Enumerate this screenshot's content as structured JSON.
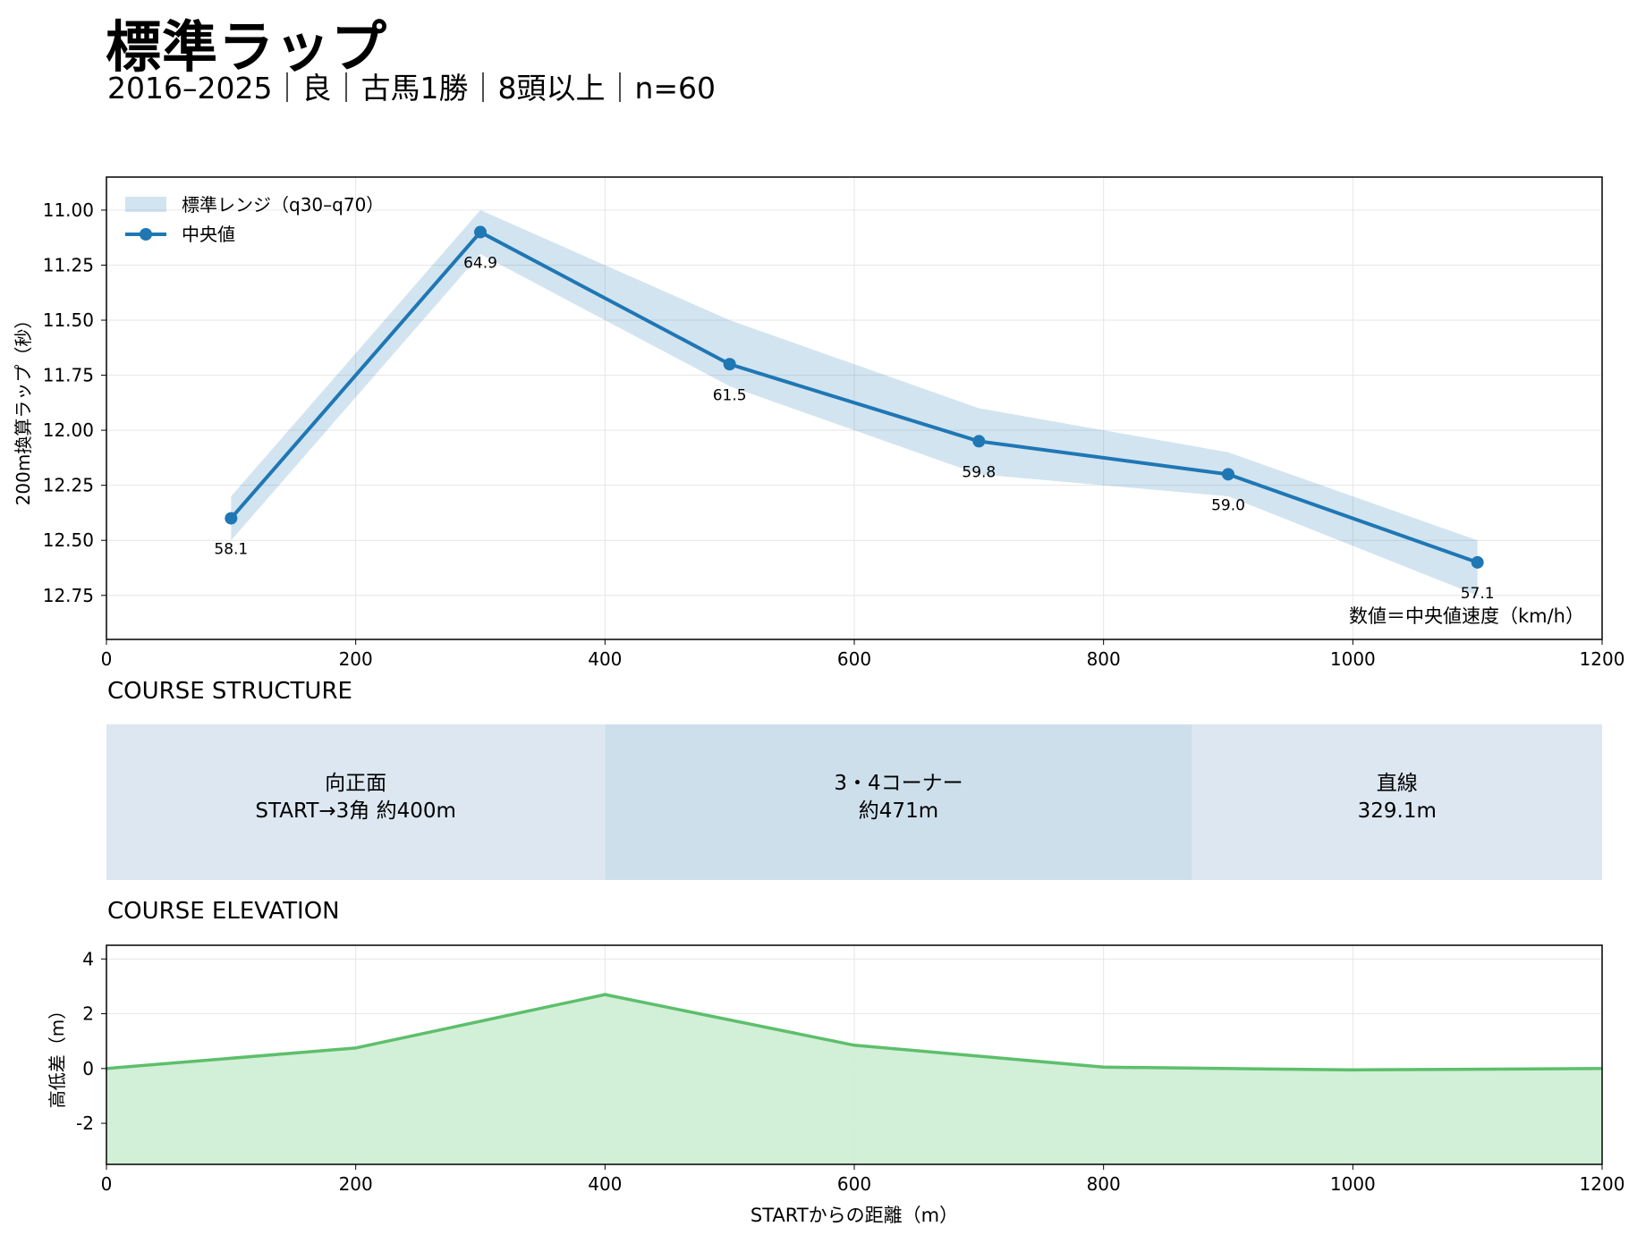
{
  "header": {
    "title": "標準ラップ",
    "subtitle": "2016–2025｜良｜古馬1勝｜8頭以上｜n=60"
  },
  "chart_data": [
    {
      "type": "line",
      "ylabel": "200m換算ラップ（秒）",
      "xlim": [
        0,
        1200
      ],
      "ylim": [
        12.95,
        10.85
      ],
      "y_inverted": true,
      "xticks": [
        "0",
        "200",
        "400",
        "600",
        "800",
        "1000",
        "1200"
      ],
      "yticks": [
        "11.00",
        "11.25",
        "11.50",
        "11.75",
        "12.00",
        "12.25",
        "12.50",
        "12.75"
      ],
      "grid": true,
      "legend": {
        "position": "top-left",
        "entries": [
          "標準レンジ（q30–q70）",
          "中央値"
        ]
      },
      "note": "数値＝中央値速度（km/h）",
      "x": [
        100,
        300,
        500,
        700,
        900,
        1100
      ],
      "series": [
        {
          "name": "中央値",
          "values": [
            12.4,
            11.1,
            11.7,
            12.05,
            12.2,
            12.6
          ],
          "color": "#1f77b4"
        },
        {
          "name": "標準レンジ（q30–q70）",
          "lower": [
            12.3,
            11.0,
            11.5,
            11.9,
            12.1,
            12.5
          ],
          "upper": [
            12.5,
            11.2,
            11.8,
            12.2,
            12.3,
            12.75
          ],
          "color": "#1f77b4"
        }
      ],
      "point_labels": [
        "58.1",
        "64.9",
        "61.5",
        "59.8",
        "59.0",
        "57.1"
      ]
    },
    {
      "type": "area",
      "title": "COURSE ELEVATION",
      "xlabel": "STARTからの距離（m）",
      "ylabel": "高低差（m）",
      "xlim": [
        0,
        1200
      ],
      "ylim": [
        -3.5,
        4.5
      ],
      "xticks": [
        "0",
        "200",
        "400",
        "600",
        "800",
        "1000",
        "1200"
      ],
      "yticks": [
        "4",
        "2",
        "0",
        "-2"
      ],
      "grid": true,
      "x": [
        0,
        200,
        400,
        600,
        800,
        1000,
        1200
      ],
      "values": [
        0,
        0.75,
        2.7,
        0.85,
        0.05,
        -0.05,
        0
      ],
      "color": "#5dbf6b",
      "fill_color": "#d0eed6"
    }
  ],
  "course_structure": {
    "title": "COURSE STRUCTURE",
    "xlim": [
      0,
      1200
    ],
    "segments": [
      {
        "start": 0,
        "end": 400,
        "label": "向正面",
        "detail": "START→3角 約400m",
        "color": "#dce7f1"
      },
      {
        "start": 400,
        "end": 871,
        "label": "3・4コーナー",
        "detail": "約471m",
        "color": "#cedfec"
      },
      {
        "start": 871,
        "end": 1200,
        "label": "直線",
        "detail": "329.1m",
        "color": "#dce7f1"
      }
    ]
  }
}
